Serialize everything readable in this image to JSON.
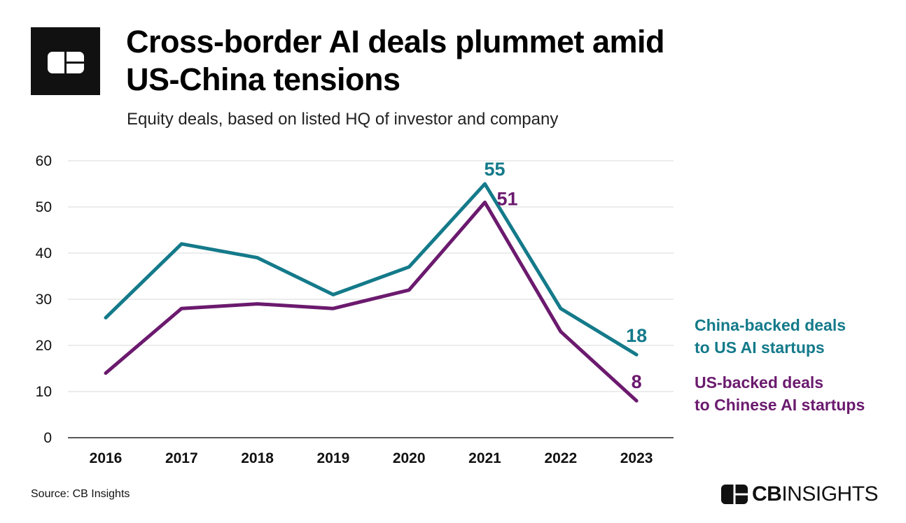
{
  "header": {
    "title_line1": "Cross-border AI deals plummet amid",
    "title_line2": "US-China tensions",
    "subtitle": "Equity deals, based on listed HQ of investor and company"
  },
  "colors": {
    "china_series": "#147a8a",
    "us_series": "#6b1a6e",
    "gridline": "#d9d9d9",
    "axis": "#222222"
  },
  "chart_data": {
    "type": "line",
    "title": "Cross-border AI deals plummet amid US-China tensions",
    "subtitle": "Equity deals, based on listed HQ of investor and company",
    "xlabel": "",
    "ylabel": "",
    "categories": [
      "2016",
      "2017",
      "2018",
      "2019",
      "2020",
      "2021",
      "2022",
      "2023"
    ],
    "yticks": [
      0,
      10,
      20,
      30,
      40,
      50,
      60
    ],
    "ylim": [
      0,
      60
    ],
    "grid": true,
    "legend_position": "right",
    "series": [
      {
        "name": "China-backed deals to US AI startups",
        "color": "#147a8a",
        "values": [
          26,
          42,
          39,
          31,
          37,
          55,
          28,
          18
        ],
        "labeled": [
          {
            "year": "2021",
            "text": "55"
          },
          {
            "year": "2023",
            "text": "18"
          }
        ]
      },
      {
        "name": "US-backed deals to Chinese AI startups",
        "color": "#6b1a6e",
        "values": [
          14,
          28,
          29,
          28,
          32,
          51,
          23,
          8
        ],
        "labeled": [
          {
            "year": "2021",
            "text": "51"
          },
          {
            "year": "2023",
            "text": "8"
          }
        ]
      }
    ]
  },
  "legend": {
    "china_line1": "China-backed deals",
    "china_line2": "to US AI startups",
    "us_line1": "US-backed deals",
    "us_line2": "to Chinese AI startups"
  },
  "footer": {
    "source": "Source: CB Insights",
    "brand_cb": "CB",
    "brand_insights": "INSIGHTS"
  },
  "icons": {
    "logo": "cb-insights-logo-icon",
    "brand_mark": "cb-insights-mark-icon"
  }
}
